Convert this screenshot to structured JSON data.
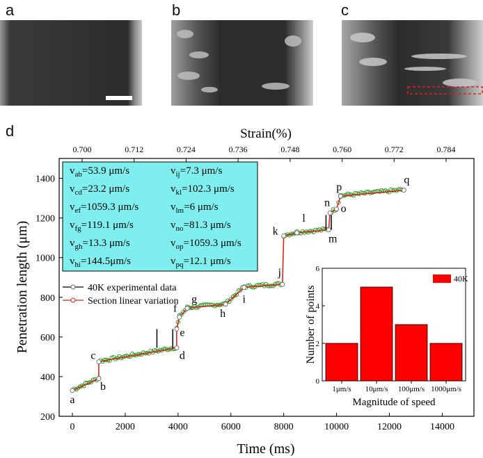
{
  "panels": {
    "a": "a",
    "b": "b",
    "c": "c",
    "d": "d"
  },
  "chart_data": {
    "type": "line",
    "xlabel": "Time (ms)",
    "ylabel": "Penetration length (μm)",
    "top_axis_label": "Strain(%)",
    "xlim": [
      -500,
      15200
    ],
    "ylim": [
      200,
      1500
    ],
    "x_ticks": [
      0,
      2000,
      4000,
      6000,
      8000,
      10000,
      12000,
      14000
    ],
    "y_ticks": [
      200,
      400,
      600,
      800,
      1000,
      1200,
      1400
    ],
    "top_ticks": [
      "0.700",
      "0.712",
      "0.724",
      "0.736",
      "0.748",
      "0.760",
      "0.772",
      "0.784"
    ],
    "series": [
      {
        "name": "40K experimental data"
      },
      {
        "name": "Section linear variation",
        "points": [
          {
            "label": "a",
            "x": 0,
            "y": 330
          },
          {
            "label": "b",
            "x": 1000,
            "y": 390
          },
          {
            "label": "c",
            "x": 1000,
            "y": 475
          },
          {
            "label": "d",
            "x": 3950,
            "y": 545
          },
          {
            "label": "e",
            "x": 3950,
            "y": 640
          },
          {
            "label": "f",
            "x": 4050,
            "y": 700
          },
          {
            "label": "g",
            "x": 4350,
            "y": 745
          },
          {
            "label": "h",
            "x": 5800,
            "y": 765
          },
          {
            "label": "i",
            "x": 6500,
            "y": 850
          },
          {
            "label": "j",
            "x": 7950,
            "y": 865
          },
          {
            "label": "k",
            "x": 8000,
            "y": 1110
          },
          {
            "label": "l",
            "x": 8500,
            "y": 1125
          },
          {
            "label": "m",
            "x": 9700,
            "y": 1140
          },
          {
            "label": "n",
            "x": 9750,
            "y": 1225
          },
          {
            "label": "o",
            "x": 10000,
            "y": 1245
          },
          {
            "label": "p",
            "x": 10150,
            "y": 1310
          },
          {
            "label": "q",
            "x": 12550,
            "y": 1340
          }
        ]
      }
    ],
    "velocities": [
      {
        "sub": "ab",
        "text": "=53.9 μm/s"
      },
      {
        "sub": "cd",
        "text": "=23.2 μm/s"
      },
      {
        "sub": "ef",
        "text": "=1059.3 μm/s"
      },
      {
        "sub": "fg",
        "text": "=119.1 μm/s"
      },
      {
        "sub": "gh",
        "text": "=13.3 μm/s"
      },
      {
        "sub": "hi",
        "text": "=144.5μm/s"
      },
      {
        "sub": "ij",
        "text": "=7.3 μm/s"
      },
      {
        "sub": "kl",
        "text": "=102.3 μm/s"
      },
      {
        "sub": "lm",
        "text": "=6 μm/s"
      },
      {
        "sub": "no",
        "text": "=81.3 μm/s"
      },
      {
        "sub": "op",
        "text": "=1059.3 μm/s"
      },
      {
        "sub": "pq",
        "text": "=12.1 μm/s"
      }
    ],
    "inset": {
      "type": "bar",
      "categories": [
        "1μm/s",
        "10μm/s",
        "100μm/s",
        "1000μm/s"
      ],
      "values": [
        2,
        5,
        3,
        2
      ],
      "series_name": "40K",
      "xlabel": "Magnitude of speed",
      "ylabel": "Number of points",
      "ylim": [
        0,
        6
      ],
      "y_ticks": [
        0,
        2,
        4,
        6
      ],
      "color": "#ff0000"
    }
  },
  "colors": {
    "experimental": "#000000",
    "linear": "#e0201a",
    "points": "#2e9e2e",
    "box": "#7feeee"
  }
}
